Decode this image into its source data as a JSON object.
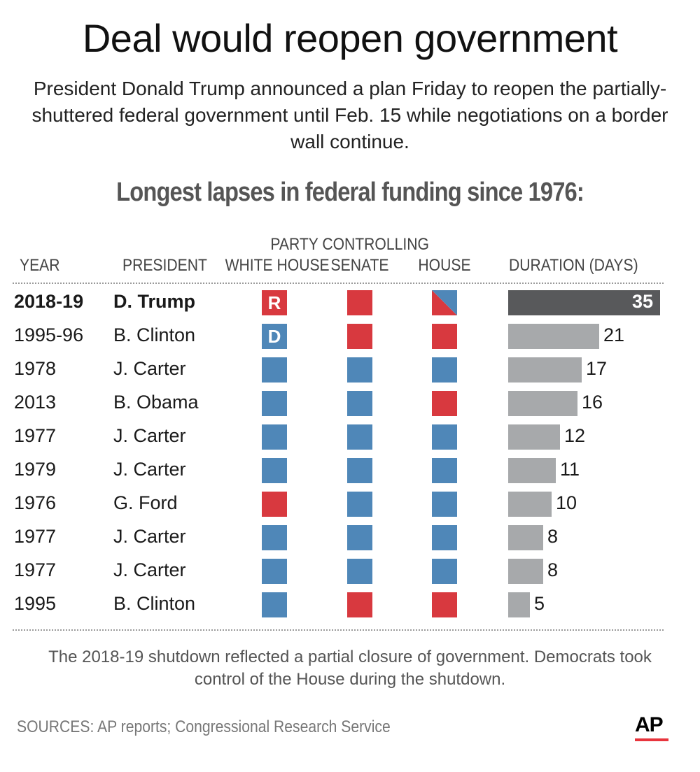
{
  "headline": "Deal would reopen government",
  "intro": "President Donald Trump announced a plan Friday to reopen the partially-shuttered federal government until Feb. 15 while negotiations on a border wall continue.",
  "subhead": "Longest lapses in federal funding since 1976:",
  "colors": {
    "republican": "#d8393f",
    "democrat": "#4f87b8",
    "highlight_bar": "#58595b",
    "bar": "#a7a9ab"
  },
  "table": {
    "group_header": "PARTY CONTROLLING",
    "headers": {
      "year": "YEAR",
      "president": "PRESIDENT",
      "white_house": "WHITE HOUSE",
      "senate": "SENATE",
      "house": "HOUSE",
      "duration": "DURATION (DAYS)"
    }
  },
  "chart_data": {
    "type": "table",
    "title": "Longest lapses in federal funding since 1976:",
    "columns": [
      "YEAR",
      "PRESIDENT",
      "WHITE HOUSE",
      "SENATE",
      "HOUSE",
      "DURATION (DAYS)"
    ],
    "xlim": [
      0,
      35
    ],
    "rows": [
      {
        "year": "2018-19",
        "president": "D. Trump",
        "white_house": "R",
        "senate": "R",
        "house": "R/D",
        "white_house_label": "R",
        "duration": 35,
        "highlight": true
      },
      {
        "year": "1995-96",
        "president": "B. Clinton",
        "white_house": "D",
        "senate": "R",
        "house": "R",
        "white_house_label": "D",
        "duration": 21
      },
      {
        "year": "1978",
        "president": "J. Carter",
        "white_house": "D",
        "senate": "D",
        "house": "D",
        "duration": 17
      },
      {
        "year": "2013",
        "president": "B. Obama",
        "white_house": "D",
        "senate": "D",
        "house": "R",
        "duration": 16
      },
      {
        "year": "1977",
        "president": "J. Carter",
        "white_house": "D",
        "senate": "D",
        "house": "D",
        "duration": 12
      },
      {
        "year": "1979",
        "president": "J. Carter",
        "white_house": "D",
        "senate": "D",
        "house": "D",
        "duration": 11
      },
      {
        "year": "1976",
        "president": "G. Ford",
        "white_house": "R",
        "senate": "D",
        "house": "D",
        "duration": 10
      },
      {
        "year": "1977",
        "president": "J. Carter",
        "white_house": "D",
        "senate": "D",
        "house": "D",
        "duration": 8
      },
      {
        "year": "1977",
        "president": "J. Carter",
        "white_house": "D",
        "senate": "D",
        "house": "D",
        "duration": 8
      },
      {
        "year": "1995",
        "president": "B. Clinton",
        "white_house": "D",
        "senate": "R",
        "house": "R",
        "duration": 5
      }
    ]
  },
  "note": "The 2018-19 shutdown reflected a partial closure of government. Democrats took control of the House during the shutdown.",
  "sources": "SOURCES: AP reports; Congressional Research Service",
  "logo": {
    "text": "AP"
  }
}
